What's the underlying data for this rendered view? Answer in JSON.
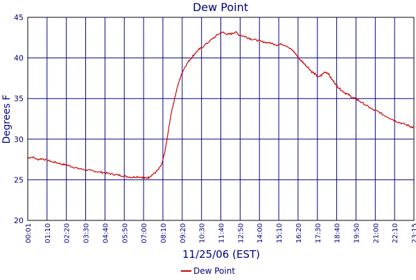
{
  "chart_data": {
    "type": "line",
    "title": "Dew Point",
    "xlabel": "11/25/06 (EST)",
    "ylabel": "Degrees F",
    "ylim": [
      20,
      45
    ],
    "y_ticks": [
      "20",
      "25",
      "30",
      "35",
      "40",
      "45"
    ],
    "x_ticks": [
      "00:01",
      "01:10",
      "02:20",
      "03:30",
      "04:40",
      "05:50",
      "07:00",
      "08:10",
      "09:20",
      "10:30",
      "11:40",
      "12:50",
      "14:00",
      "15:10",
      "16:20",
      "17:30",
      "18:40",
      "19:50",
      "21:00",
      "22:10",
      "23:15"
    ],
    "grid": true,
    "legend_position": "bottom-center",
    "colors": {
      "series": "#cc0000",
      "grid": "#000080",
      "text": "#000080",
      "axis_box": "#000000"
    },
    "series": [
      {
        "name": "Dew Point",
        "x_hours": [
          0.02,
          0.3,
          0.6,
          0.9,
          1.2,
          1.5,
          1.8,
          2.1,
          2.4,
          2.7,
          3.0,
          3.3,
          3.6,
          3.9,
          4.2,
          4.5,
          4.8,
          5.1,
          5.4,
          5.7,
          6.0,
          6.3,
          6.6,
          6.9,
          7.1,
          7.3,
          7.5,
          7.7,
          7.9,
          8.1,
          8.25,
          8.4,
          8.55,
          8.7,
          8.85,
          9.0,
          9.15,
          9.3,
          9.5,
          9.7,
          9.9,
          10.1,
          10.3,
          10.5,
          10.8,
          11.1,
          11.4,
          11.7,
          11.9,
          12.1,
          12.3,
          12.5,
          12.75,
          13.0,
          13.25,
          13.5,
          13.8,
          14.1,
          14.4,
          14.7,
          15.0,
          15.3,
          15.6,
          15.9,
          16.1,
          16.3,
          16.5,
          16.7,
          16.9,
          17.1,
          17.3,
          17.5,
          17.7,
          17.9,
          18.1,
          18.3,
          18.5,
          18.7,
          18.9,
          19.1,
          19.3,
          19.5,
          19.7,
          19.9,
          20.2,
          20.5,
          20.8,
          21.1,
          21.4,
          21.7,
          22.0,
          22.3,
          22.6,
          22.9,
          23.1,
          23.25
        ],
        "values": [
          27.7,
          27.8,
          27.5,
          27.6,
          27.4,
          27.2,
          27.1,
          26.9,
          26.8,
          26.6,
          26.4,
          26.3,
          26.2,
          26.1,
          26.0,
          25.9,
          25.8,
          25.7,
          25.6,
          25.5,
          25.4,
          25.3,
          25.4,
          25.3,
          25.2,
          25.3,
          25.6,
          25.9,
          26.3,
          27.0,
          28.3,
          30.0,
          32.0,
          33.7,
          35.0,
          36.3,
          37.3,
          38.2,
          39.0,
          39.6,
          40.1,
          40.6,
          41.0,
          41.3,
          41.8,
          42.3,
          42.8,
          43.2,
          43.0,
          42.9,
          43.0,
          43.2,
          42.8,
          42.7,
          42.5,
          42.3,
          42.2,
          42.0,
          41.9,
          41.8,
          41.6,
          41.7,
          41.5,
          41.0,
          40.6,
          40.0,
          39.6,
          39.2,
          38.8,
          38.3,
          38.0,
          37.6,
          37.9,
          38.3,
          38.1,
          37.4,
          36.9,
          36.4,
          36.0,
          35.7,
          35.5,
          35.2,
          35.0,
          34.8,
          34.4,
          34.0,
          33.6,
          33.4,
          33.0,
          32.7,
          32.4,
          32.1,
          31.9,
          31.7,
          31.5,
          31.4
        ]
      }
    ]
  }
}
